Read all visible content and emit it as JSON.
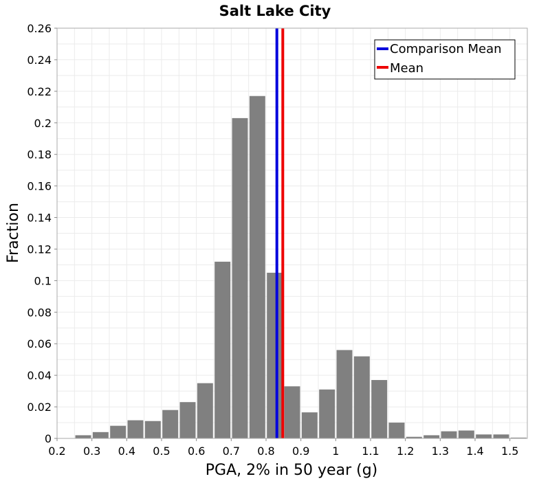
{
  "chart_data": {
    "type": "bar",
    "title": "Salt Lake City",
    "xlabel": "PGA, 2% in 50 year (g)",
    "ylabel": "Fraction",
    "xlim": [
      0.2,
      1.55
    ],
    "ylim": [
      0,
      0.26
    ],
    "bin_width": 0.05,
    "x_ticks": [
      "0.2",
      "0.3",
      "0.4",
      "0.5",
      "0.6",
      "0.7",
      "0.8",
      "0.9",
      "1",
      "1.1",
      "1.2",
      "1.3",
      "1.4",
      "1.5"
    ],
    "y_ticks": [
      "0",
      "0.02",
      "0.04",
      "0.06",
      "0.08",
      "0.1",
      "0.12",
      "0.14",
      "0.16",
      "0.18",
      "0.2",
      "0.22",
      "0.24",
      "0.26"
    ],
    "bins": [
      {
        "center": 0.275,
        "value": 0.002
      },
      {
        "center": 0.325,
        "value": 0.004
      },
      {
        "center": 0.375,
        "value": 0.008
      },
      {
        "center": 0.425,
        "value": 0.0115
      },
      {
        "center": 0.475,
        "value": 0.011
      },
      {
        "center": 0.525,
        "value": 0.018
      },
      {
        "center": 0.575,
        "value": 0.023
      },
      {
        "center": 0.625,
        "value": 0.035
      },
      {
        "center": 0.675,
        "value": 0.112
      },
      {
        "center": 0.725,
        "value": 0.203
      },
      {
        "center": 0.775,
        "value": 0.217
      },
      {
        "center": 0.825,
        "value": 0.105
      },
      {
        "center": 0.875,
        "value": 0.033
      },
      {
        "center": 0.925,
        "value": 0.0165
      },
      {
        "center": 0.975,
        "value": 0.031
      },
      {
        "center": 1.025,
        "value": 0.056
      },
      {
        "center": 1.075,
        "value": 0.052
      },
      {
        "center": 1.125,
        "value": 0.037
      },
      {
        "center": 1.175,
        "value": 0.01
      },
      {
        "center": 1.225,
        "value": 0.001
      },
      {
        "center": 1.275,
        "value": 0.002
      },
      {
        "center": 1.325,
        "value": 0.0045
      },
      {
        "center": 1.375,
        "value": 0.005
      },
      {
        "center": 1.425,
        "value": 0.0025
      },
      {
        "center": 1.475,
        "value": 0.0025
      },
      {
        "center": 1.525,
        "value": 0.0005
      }
    ],
    "bar_color": "#808080",
    "vlines": [
      {
        "name": "Comparison Mean",
        "x": 0.831,
        "color": "#0000dd"
      },
      {
        "name": "Mean",
        "x": 0.848,
        "color": "#ee0000"
      }
    ],
    "legend": {
      "position": "top-right",
      "entries": [
        {
          "label": "Comparison Mean",
          "color": "#0000dd"
        },
        {
          "label": "Mean",
          "color": "#ee0000"
        }
      ]
    },
    "grid": true
  }
}
